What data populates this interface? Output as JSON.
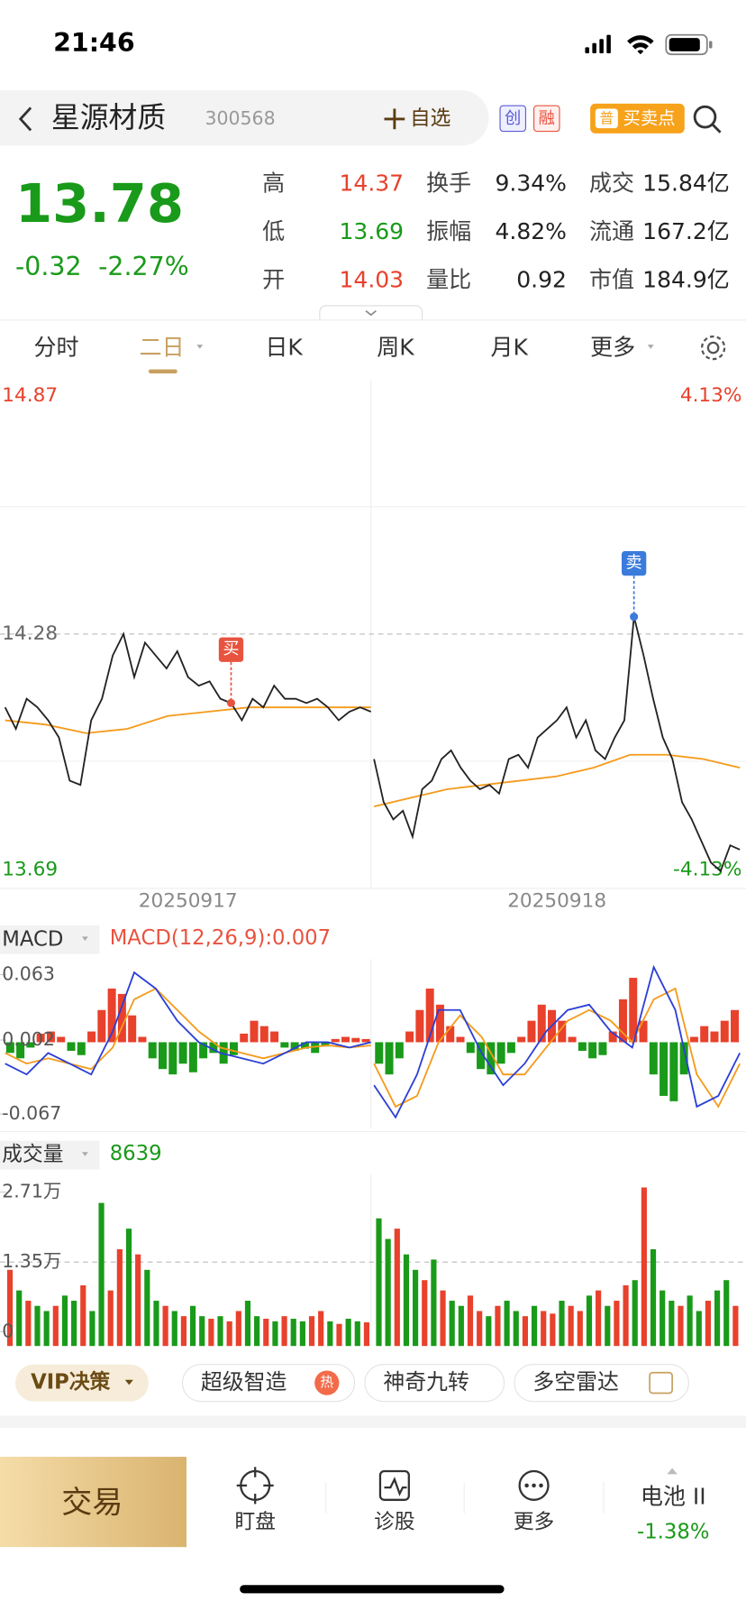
{
  "status": {
    "time": "21:46"
  },
  "header": {
    "name": "星源材质",
    "code": "300568",
    "watch": "自选",
    "badges": [
      "创",
      "融"
    ],
    "signal_tag": "普",
    "signal": "买卖点"
  },
  "quote": {
    "price": "13.78",
    "change": "-0.32",
    "change_pct": "-2.27%",
    "stats": [
      {
        "label": "高",
        "value": "14.37",
        "color": "#e8412c"
      },
      {
        "label": "换手",
        "value": "9.34%"
      },
      {
        "label": "成交",
        "value": "15.84亿"
      },
      {
        "label": "低",
        "value": "13.69",
        "color": "#1a9a1a"
      },
      {
        "label": "振幅",
        "value": "4.82%"
      },
      {
        "label": "流通",
        "value": "167.2亿"
      },
      {
        "label": "开",
        "value": "14.03",
        "color": "#e8412c"
      },
      {
        "label": "量比",
        "value": "0.92"
      },
      {
        "label": "市值",
        "value": "184.9亿"
      }
    ]
  },
  "tabs": [
    "分时",
    "二日",
    "日K",
    "周K",
    "月K",
    "更多"
  ],
  "active_tab": 1,
  "chart_data": [
    {
      "type": "line",
      "ylim": [
        13.69,
        14.87
      ],
      "yticks": [
        13.69,
        14.28,
        14.87
      ],
      "pct_ticks": [
        "-4.13%",
        "4.13%"
      ],
      "dates": [
        "20250917",
        "20250918"
      ],
      "price_color": "#222222",
      "avg_color": "#f59a1b",
      "up_color": "#e8412c",
      "down_color": "#1a9a1a",
      "days": [
        {
          "price": [
            14.11,
            14.06,
            14.13,
            14.11,
            14.08,
            14.04,
            13.94,
            13.93,
            14.08,
            14.13,
            14.23,
            14.28,
            14.18,
            14.26,
            14.23,
            14.2,
            14.24,
            14.18,
            14.16,
            14.17,
            14.13,
            14.12,
            14.08,
            14.13,
            14.11,
            14.16,
            14.13,
            14.13,
            14.12,
            14.13,
            14.11,
            14.08,
            14.1,
            14.11,
            14.1
          ],
          "avg": [
            14.08,
            14.07,
            14.05,
            14.06,
            14.09,
            14.1,
            14.11,
            14.11,
            14.11,
            14.11
          ]
        },
        {
          "price": [
            13.99,
            13.89,
            13.85,
            13.87,
            13.81,
            13.92,
            13.94,
            13.99,
            14.01,
            13.97,
            13.94,
            13.92,
            13.93,
            13.91,
            13.99,
            14.0,
            13.97,
            14.04,
            14.06,
            14.08,
            14.11,
            14.04,
            14.08,
            14.01,
            13.99,
            14.04,
            14.08,
            14.32,
            14.23,
            14.13,
            14.04,
            13.99,
            13.89,
            13.85,
            13.8,
            13.75,
            13.73,
            13.79,
            13.78
          ],
          "avg": [
            13.88,
            13.9,
            13.92,
            13.93,
            13.94,
            13.95,
            13.97,
            14.0,
            14.0,
            13.99,
            13.97
          ]
        }
      ],
      "signals": [
        {
          "label": "买",
          "day": 0,
          "index": 21,
          "color": "#e8533f"
        },
        {
          "label": "卖",
          "day": 1,
          "index": 27,
          "color": "#3b7bdc"
        }
      ]
    },
    {
      "type": "macd",
      "label": "MACD",
      "indicator": "MACD(12,26,9):0.007",
      "ylim": [
        -0.067,
        0.063
      ],
      "yticks": [
        -0.067,
        0.002,
        0.063
      ],
      "dif_color": "#2b3fd6",
      "dea_color": "#f59a1b",
      "up_color": "#e8412c",
      "down_color": "#1a9a1a",
      "days": [
        {
          "hist": [
            -0.01,
            -0.015,
            -0.005,
            0.008,
            0.01,
            0.005,
            -0.008,
            -0.012,
            0.01,
            0.03,
            0.05,
            0.045,
            0.025,
            0.005,
            -0.015,
            -0.025,
            -0.03,
            -0.02,
            -0.028,
            -0.015,
            -0.01,
            -0.02,
            -0.012,
            0.008,
            0.02,
            0.015,
            0.01,
            -0.005,
            -0.008,
            -0.006,
            -0.01,
            -0.004,
            0.003,
            0.005,
            0.004,
            0.003
          ],
          "dif": [
            -0.02,
            -0.03,
            -0.01,
            -0.02,
            -0.03,
            0.01,
            0.065,
            0.05,
            0.02,
            0.0,
            -0.01,
            -0.015,
            -0.02,
            -0.01,
            0.0,
            0.0,
            -0.005,
            0.0
          ],
          "dea": [
            -0.01,
            -0.02,
            -0.015,
            -0.02,
            -0.025,
            -0.005,
            0.04,
            0.05,
            0.03,
            0.01,
            -0.005,
            -0.01,
            -0.015,
            -0.01,
            -0.005,
            -0.003,
            -0.005,
            -0.003
          ]
        },
        {
          "hist": [
            -0.02,
            -0.03,
            -0.015,
            0.01,
            0.03,
            0.05,
            0.035,
            0.015,
            0.005,
            -0.01,
            -0.025,
            -0.03,
            -0.02,
            -0.01,
            0.005,
            0.02,
            0.035,
            0.03,
            0.02,
            0.005,
            -0.008,
            -0.015,
            -0.012,
            0.01,
            0.04,
            0.06,
            0.02,
            -0.03,
            -0.05,
            -0.055,
            -0.03,
            0.005,
            0.015,
            0.01,
            0.02,
            0.03
          ],
          "dif": [
            -0.04,
            -0.07,
            -0.03,
            0.03,
            0.03,
            -0.01,
            -0.04,
            -0.02,
            0.01,
            0.03,
            0.035,
            0.01,
            -0.005,
            0.07,
            0.03,
            -0.06,
            -0.05,
            -0.01
          ],
          "dea": [
            -0.02,
            -0.06,
            -0.05,
            0.0,
            0.025,
            0.005,
            -0.03,
            -0.03,
            -0.005,
            0.02,
            0.03,
            0.02,
            0.0,
            0.04,
            0.05,
            -0.03,
            -0.06,
            -0.02
          ]
        }
      ]
    },
    {
      "type": "bar",
      "label": "成交量",
      "current": "8639",
      "ylim": [
        0,
        27100
      ],
      "yticks": [
        0,
        {
          "value": 13500,
          "label": "1.35万"
        },
        {
          "value": 27100,
          "label": "2.71万"
        }
      ],
      "up_color": "#e8412c",
      "down_color": "#1a9a1a",
      "days": [
        {
          "values": [
            12000,
            8000,
            6000,
            5000,
            4000,
            5000,
            7000,
            6000,
            9000,
            4000,
            25000,
            8000,
            16000,
            20000,
            15000,
            12000,
            6000,
            5000,
            4000,
            3000,
            5000,
            3000,
            2500,
            3000,
            2000,
            4000,
            6000,
            3000,
            2500,
            2000,
            3000,
            2500,
            2000,
            3000,
            4000,
            2000,
            1500,
            2500,
            2000,
            1800
          ],
          "up": [
            1,
            0,
            1,
            0,
            0,
            1,
            0,
            0,
            1,
            0,
            0,
            1,
            1,
            0,
            1,
            0,
            0,
            1,
            0,
            1,
            0,
            0,
            1,
            0,
            1,
            1,
            0,
            0,
            1,
            0,
            1,
            0,
            0,
            1,
            1,
            0,
            1,
            0,
            0,
            1
          ]
        },
        {
          "values": [
            22000,
            18000,
            20000,
            15000,
            12000,
            10000,
            14000,
            8000,
            6000,
            5000,
            7000,
            4000,
            3000,
            5000,
            6000,
            4000,
            3000,
            5000,
            4000,
            3500,
            6000,
            5000,
            4000,
            7000,
            8000,
            5000,
            6000,
            9000,
            10000,
            28000,
            16000,
            8000,
            6000,
            5000,
            7000,
            4000,
            6000,
            8000,
            10000,
            5000
          ],
          "up": [
            0,
            0,
            1,
            0,
            0,
            1,
            0,
            1,
            0,
            0,
            1,
            1,
            0,
            1,
            0,
            0,
            1,
            0,
            1,
            1,
            0,
            1,
            1,
            0,
            1,
            0,
            1,
            1,
            0,
            1,
            0,
            0,
            0,
            1,
            0,
            0,
            1,
            0,
            0,
            1
          ]
        }
      ]
    }
  ],
  "toolbar": [
    "VIP决策",
    "超级智造",
    "神奇九转",
    "多空雷达"
  ],
  "toolbar_hot": "热",
  "nav": {
    "trade": "交易",
    "items": [
      "盯盘",
      "诊股",
      "更多"
    ],
    "index_name": "电池 II",
    "index_change": "-1.38%"
  }
}
